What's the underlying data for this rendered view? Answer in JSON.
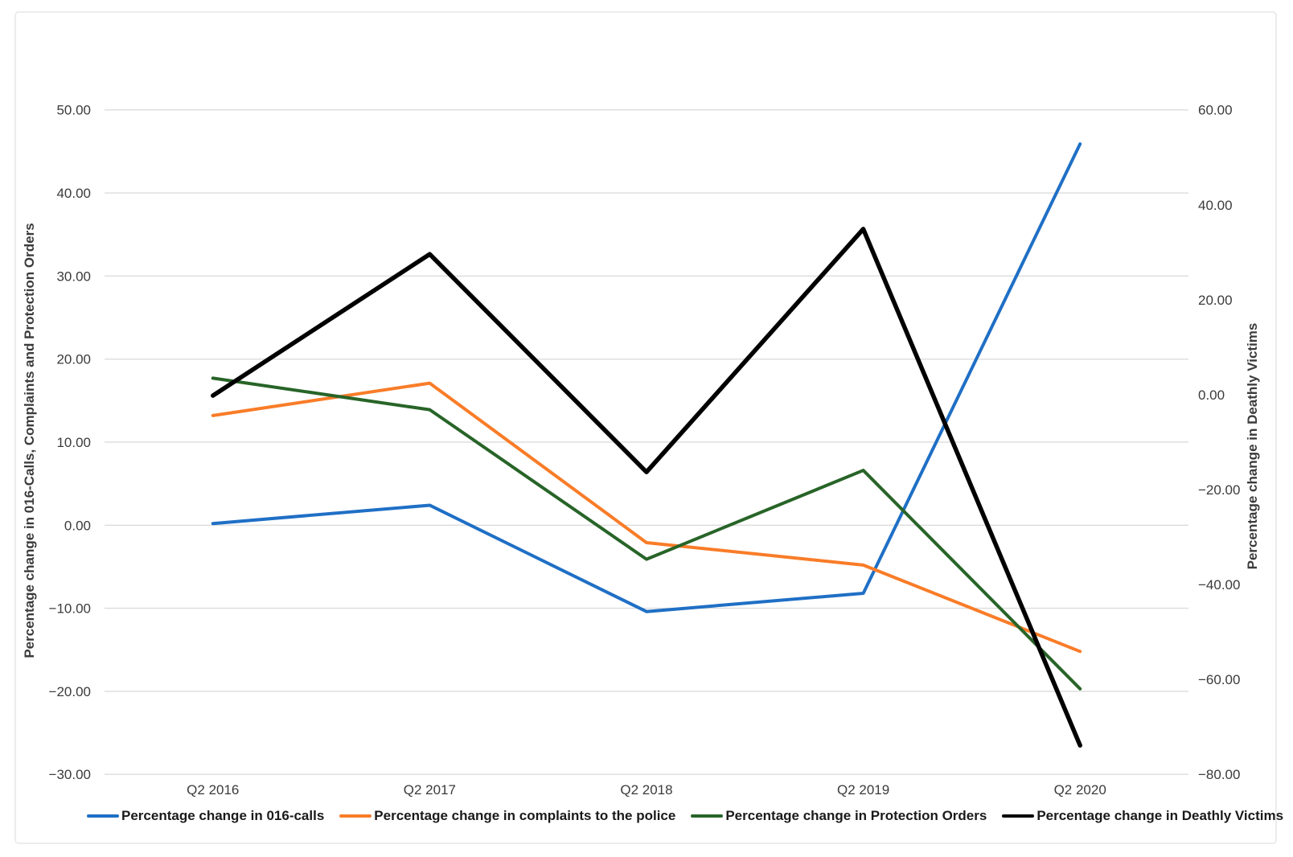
{
  "chart_data": {
    "type": "line",
    "title": "",
    "categories": [
      "Q2 2016",
      "Q2 2017",
      "Q2 2018",
      "Q2 2019",
      "Q2 2020"
    ],
    "left_axis": {
      "label": "Percentage change in 016-Calls, Complaints and Protection Orders",
      "ticks": [
        50,
        40,
        30,
        20,
        10,
        0,
        -10,
        -20,
        -30
      ],
      "range": [
        -30,
        50
      ],
      "tick_format": "0.00"
    },
    "right_axis": {
      "label": "Percentage change in Deathly Victims",
      "ticks": [
        60,
        40,
        20,
        0,
        -20,
        -40,
        -60,
        -80
      ],
      "range": [
        -80,
        60
      ],
      "tick_format": "0.00"
    },
    "grid": true,
    "legend_position": "bottom",
    "series": [
      {
        "id": "016-calls",
        "name": "Percentage change in 016-calls",
        "color": "#1f6fc5",
        "axis": "left",
        "stroke_width": 4,
        "values": [
          0.2,
          2.4,
          -10.4,
          -8.2,
          45.9
        ]
      },
      {
        "id": "complaints",
        "name": "Percentage change in complaints to the police",
        "color": "#f97c28",
        "axis": "left",
        "stroke_width": 4,
        "values": [
          13.2,
          17.1,
          -2.1,
          -4.8,
          -15.2
        ]
      },
      {
        "id": "protection-orders",
        "name": "Percentage change in Protection Orders",
        "color": "#286428",
        "axis": "left",
        "stroke_width": 4,
        "values": [
          17.7,
          13.9,
          -4.1,
          6.6,
          -19.7
        ]
      },
      {
        "id": "deathly-victims",
        "name": "Percentage change in Deathly Victims",
        "color": "#000000",
        "axis": "right",
        "stroke_width": 5.5,
        "values": [
          -0.2,
          29.6,
          -16.3,
          34.9,
          -73.9
        ]
      }
    ]
  }
}
